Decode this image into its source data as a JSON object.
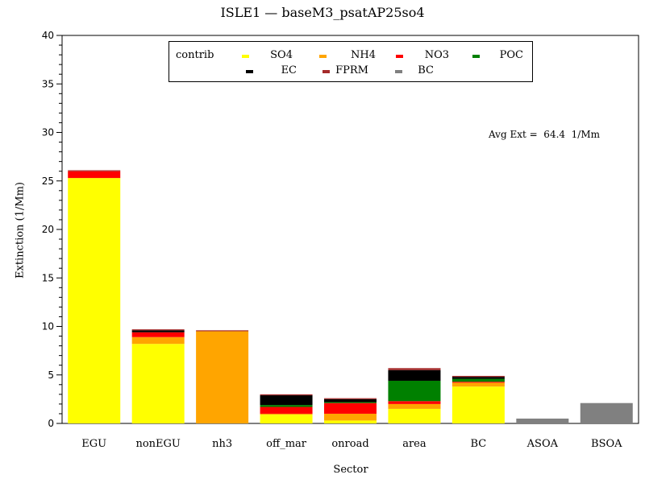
{
  "title": "ISLE1 —  baseM3_psatAP25so4",
  "legend": {
    "heading": "contrib",
    "items": [
      {
        "label": "SO4",
        "color": "#ffff00"
      },
      {
        "label": "NH4",
        "color": "#ffa500"
      },
      {
        "label": "NO3",
        "color": "#ff0000"
      },
      {
        "label": "POC",
        "color": "#008000"
      },
      {
        "label": "EC",
        "color": "#000000"
      },
      {
        "label": "FPRM",
        "color": "#a52a2a"
      },
      {
        "label": "BC",
        "color": "#808080"
      }
    ]
  },
  "annotation": "Avg Ext =  64.4  1/Mm",
  "chart_data": {
    "type": "bar",
    "stacked": true,
    "title": "ISLE1 —  baseM3_psatAP25so4",
    "xlabel": "Sector",
    "ylabel": "Extinction  (1/Mm)",
    "ylim": [
      0,
      40
    ],
    "yticks": [
      0,
      5,
      10,
      15,
      20,
      25,
      30,
      35,
      40
    ],
    "categories": [
      "EGU",
      "nonEGU",
      "nh3",
      "off_mar",
      "onroad",
      "area",
      "BC",
      "ASOA",
      "BSOA"
    ],
    "series": [
      {
        "name": "SO4",
        "color": "#ffff00",
        "values": [
          25.3,
          8.2,
          0.0,
          0.9,
          0.3,
          1.5,
          3.8,
          0.0,
          0.0
        ]
      },
      {
        "name": "NH4",
        "color": "#ffa500",
        "values": [
          0.0,
          0.7,
          9.5,
          0.1,
          0.7,
          0.5,
          0.4,
          0.0,
          0.0
        ]
      },
      {
        "name": "NO3",
        "color": "#ff0000",
        "values": [
          0.7,
          0.5,
          0.0,
          0.7,
          1.1,
          0.3,
          0.1,
          0.0,
          0.0
        ]
      },
      {
        "name": "POC",
        "color": "#008000",
        "values": [
          0.0,
          0.0,
          0.0,
          0.2,
          0.1,
          2.1,
          0.3,
          0.0,
          0.0
        ]
      },
      {
        "name": "EC",
        "color": "#000000",
        "values": [
          0.0,
          0.2,
          0.0,
          1.0,
          0.3,
          1.1,
          0.2,
          0.0,
          0.0
        ]
      },
      {
        "name": "FPRM",
        "color": "#a52a2a",
        "values": [
          0.1,
          0.1,
          0.1,
          0.1,
          0.1,
          0.2,
          0.1,
          0.0,
          0.0
        ]
      },
      {
        "name": "BC",
        "color": "#808080",
        "values": [
          0.0,
          0.0,
          0.0,
          0.0,
          0.0,
          0.0,
          0.0,
          0.5,
          2.1
        ]
      }
    ],
    "legend_position": "top-center",
    "grid": false
  }
}
